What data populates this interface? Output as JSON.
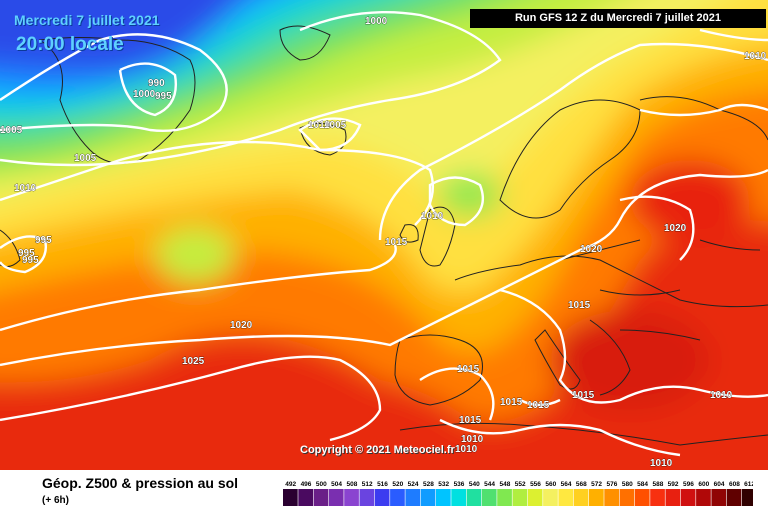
{
  "header": {
    "date": "Mercredi 7 juillet 2021",
    "local_time": "20:00 locale",
    "run_info": "Run GFS 12 Z du Mercredi 7 juillet 2021"
  },
  "copyright": "Copyright © 2021 Meteociel.fr",
  "footer": {
    "title": "Géop. Z500 & pression au sol",
    "forecast_step": "(+ 6h)"
  },
  "legend": {
    "values": [
      "492",
      "496",
      "500",
      "504",
      "508",
      "512",
      "516",
      "520",
      "524",
      "528",
      "532",
      "536",
      "540",
      "544",
      "548",
      "552",
      "556",
      "560",
      "564",
      "568",
      "572",
      "576",
      "580",
      "584",
      "588",
      "592",
      "596",
      "600",
      "604",
      "608",
      "612"
    ],
    "colors": [
      "#2a0030",
      "#4a0a60",
      "#6a1f88",
      "#7a2fb0",
      "#8a44d0",
      "#6a44e0",
      "#3c3cf0",
      "#2a5cff",
      "#1e7cff",
      "#109cff",
      "#00c4ff",
      "#00e0e0",
      "#20e0a0",
      "#50e070",
      "#80e850",
      "#b0ee40",
      "#dcf030",
      "#f4f060",
      "#ffe840",
      "#ffd020",
      "#ffb000",
      "#ff9000",
      "#ff7000",
      "#ff5000",
      "#f83010",
      "#e82010",
      "#d01010",
      "#b00808",
      "#900404",
      "#600000",
      "#300000"
    ]
  },
  "isobars": [
    {
      "value": "1000"
    },
    {
      "value": "990"
    },
    {
      "value": "1000"
    },
    {
      "value": "995"
    },
    {
      "value": "1005"
    },
    {
      "value": "1005"
    },
    {
      "value": "1010"
    },
    {
      "value": "1005"
    },
    {
      "value": "1010"
    },
    {
      "value": "995"
    },
    {
      "value": "995"
    },
    {
      "value": "995"
    },
    {
      "value": "1010"
    },
    {
      "value": "1015"
    },
    {
      "value": "1010"
    },
    {
      "value": "1020"
    },
    {
      "value": "1020"
    },
    {
      "value": "1015"
    },
    {
      "value": "1020"
    },
    {
      "value": "1025"
    },
    {
      "value": "1015"
    },
    {
      "value": "1015"
    },
    {
      "value": "1015"
    },
    {
      "value": "1015"
    },
    {
      "value": "1015"
    },
    {
      "value": "1010"
    },
    {
      "value": "1010"
    },
    {
      "value": "1010"
    },
    {
      "value": "1010"
    }
  ]
}
